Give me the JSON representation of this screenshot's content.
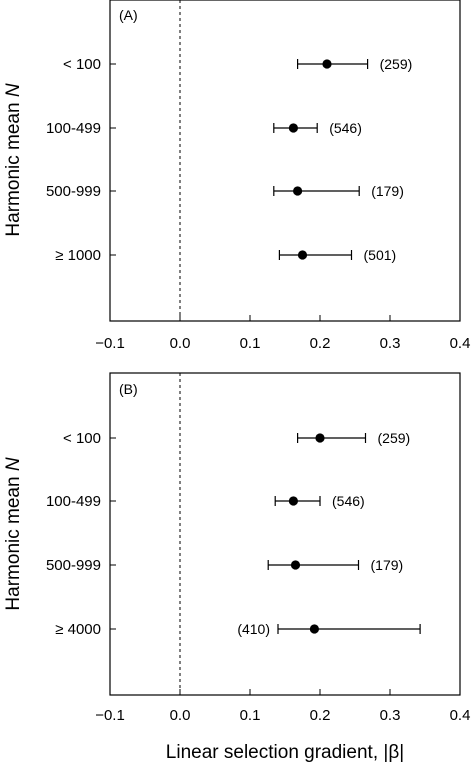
{
  "chart_data": [
    {
      "type": "scatter",
      "panel_label": "(A)",
      "ylabel": "Harmonic mean N",
      "xlim": [
        -0.1,
        0.4
      ],
      "xticks": [
        "-0.1",
        "0.0",
        "0.1",
        "0.2",
        "0.3",
        "0.4"
      ],
      "categories": [
        "< 100",
        "100-499",
        "500-999",
        "≥ 1000"
      ],
      "points": [
        {
          "category": "< 100",
          "mean": 0.21,
          "ci_low": 0.168,
          "ci_high": 0.268,
          "n_label": "(259)"
        },
        {
          "category": "100-499",
          "mean": 0.162,
          "ci_low": 0.134,
          "ci_high": 0.196,
          "n_label": "(546)"
        },
        {
          "category": "500-999",
          "mean": 0.168,
          "ci_low": 0.134,
          "ci_high": 0.256,
          "n_label": "(179)"
        },
        {
          "category": "≥ 1000",
          "mean": 0.175,
          "ci_low": 0.142,
          "ci_high": 0.245,
          "n_label": "(501)"
        }
      ],
      "reference_line_x": 0.0
    },
    {
      "type": "scatter",
      "panel_label": "(B)",
      "ylabel": "Harmonic mean N",
      "xlabel": "Linear selection gradient, |β|",
      "xlim": [
        -0.1,
        0.4
      ],
      "xticks": [
        "-0.1",
        "0.0",
        "0.1",
        "0.2",
        "0.3",
        "0.4"
      ],
      "categories": [
        "< 100",
        "100-499",
        "500-999",
        "≥ 4000"
      ],
      "points": [
        {
          "category": "< 100",
          "mean": 0.2,
          "ci_low": 0.168,
          "ci_high": 0.265,
          "n_label": "(259)"
        },
        {
          "category": "100-499",
          "mean": 0.162,
          "ci_low": 0.136,
          "ci_high": 0.2,
          "n_label": "(546)"
        },
        {
          "category": "500-999",
          "mean": 0.165,
          "ci_low": 0.126,
          "ci_high": 0.255,
          "n_label": "(179)"
        },
        {
          "category": "≥ 4000",
          "mean": 0.192,
          "ci_low": 0.14,
          "ci_high": 0.343,
          "n_label": "(410)"
        }
      ],
      "reference_line_x": 0.0
    }
  ]
}
